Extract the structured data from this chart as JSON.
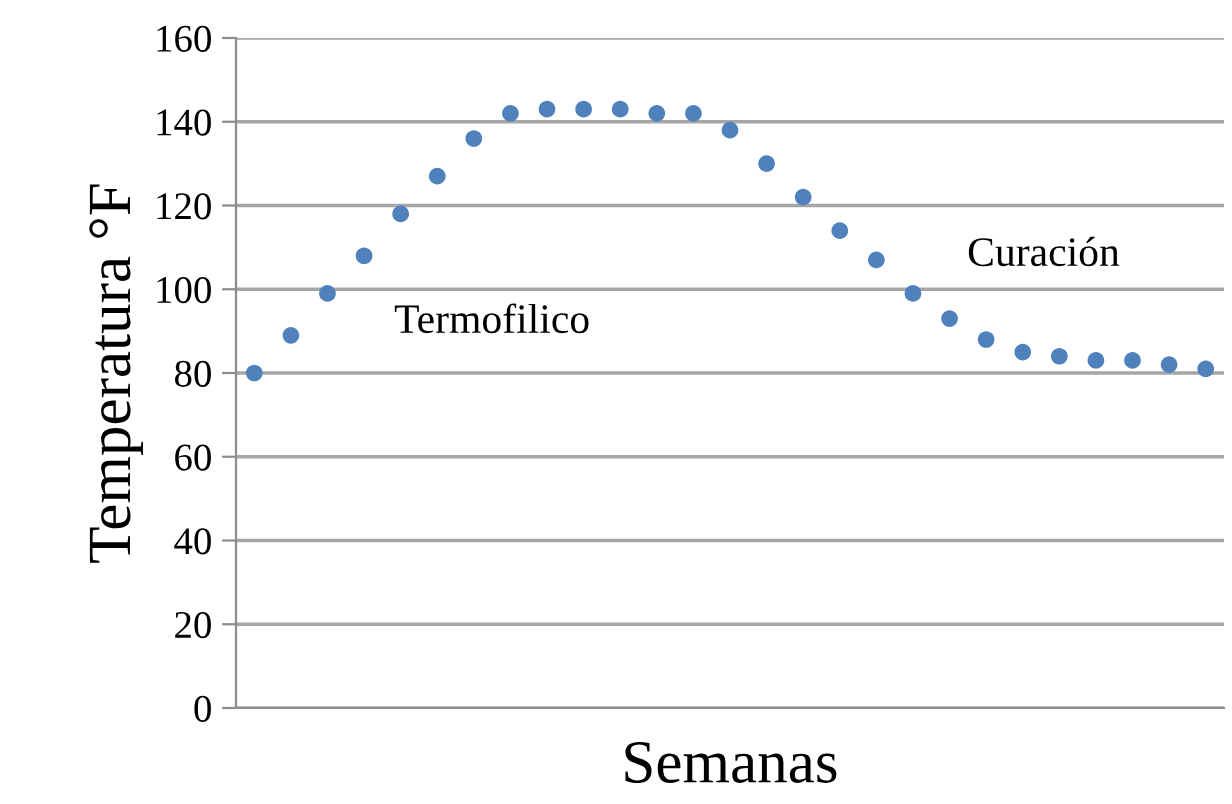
{
  "chart_data": {
    "type": "scatter",
    "xlabel": "Semanas",
    "ylabel": "Temperatura °F",
    "categories": [
      null,
      null,
      null,
      null,
      null,
      null,
      null,
      null,
      null,
      null,
      null,
      null,
      null,
      null,
      null,
      null,
      null,
      null,
      null,
      null,
      null,
      null,
      null,
      null,
      null,
      null,
      null
    ],
    "series": [
      {
        "color": "#4f81bd",
        "values": [
          80,
          89,
          99,
          108,
          118,
          127,
          136,
          142,
          143,
          143,
          143,
          142,
          142,
          138,
          130,
          122,
          114,
          107,
          99,
          93,
          88,
          85,
          84,
          83,
          83,
          82,
          81
        ]
      }
    ],
    "ylim": [
      0,
      160
    ],
    "yticks": [
      0,
      20,
      40,
      60,
      80,
      100,
      120,
      140,
      160
    ],
    "tick_labels": "y",
    "grid": "y",
    "marker": "circle",
    "legend": false,
    "annotations": [
      "Termofilico",
      "Curación"
    ]
  }
}
